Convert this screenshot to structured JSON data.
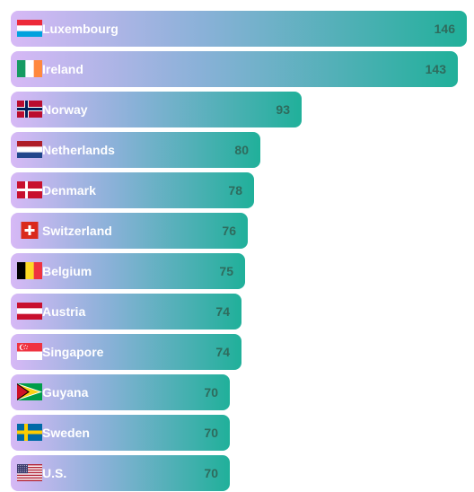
{
  "chart_data": {
    "type": "bar",
    "orientation": "horizontal",
    "title": "",
    "xlabel": "",
    "ylabel": "",
    "categories": [
      "Luxembourg",
      "Ireland",
      "Norway",
      "Netherlands",
      "Denmark",
      "Switzerland",
      "Belgium",
      "Austria",
      "Singapore",
      "Guyana",
      "Sweden",
      "U.S."
    ],
    "values": [
      146,
      143,
      93,
      80,
      78,
      76,
      75,
      74,
      74,
      70,
      70,
      70
    ],
    "flags": [
      "luxembourg-flag-icon",
      "ireland-flag-icon",
      "norway-flag-icon",
      "netherlands-flag-icon",
      "denmark-flag-icon",
      "switzerland-flag-icon",
      "belgium-flag-icon",
      "austria-flag-icon",
      "singapore-flag-icon",
      "guyana-flag-icon",
      "sweden-flag-icon",
      "us-flag-icon"
    ],
    "bar_gradient": [
      "#d7b9f6",
      "#8ab1d8",
      "#20b09a"
    ],
    "value_color": "#2f6b5d",
    "label_color": "#ffffff",
    "grid": false,
    "legend": "none"
  }
}
